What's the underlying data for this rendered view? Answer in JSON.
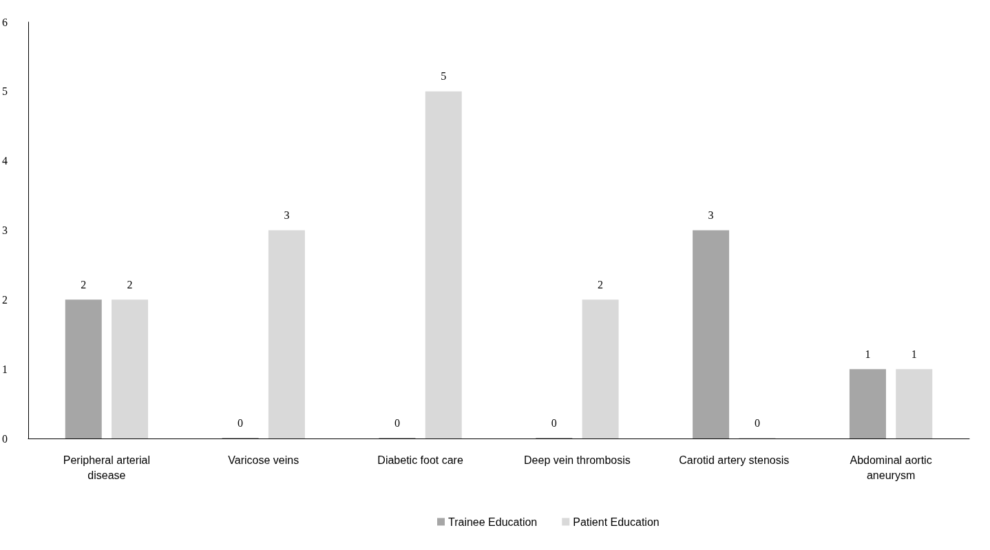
{
  "chart_data": {
    "type": "bar",
    "categories": [
      "Peripheral arterial disease",
      "Varicose veins",
      "Diabetic foot care",
      "Deep vein thrombosis",
      "Carotid artery stenosis",
      "Abdominal aortic aneurysm"
    ],
    "series": [
      {
        "name": "Trainee Education",
        "color": "#a6a6a6",
        "values": [
          2,
          0,
          0,
          0,
          3,
          1
        ]
      },
      {
        "name": "Patient Education",
        "color": "#d9d9d9",
        "values": [
          2,
          3,
          5,
          2,
          0,
          1
        ]
      }
    ],
    "ylim": [
      0,
      6
    ],
    "yticks": [
      0,
      1,
      2,
      3,
      4,
      5,
      6
    ],
    "grid": false,
    "legend": "bottom",
    "data_labels": true
  }
}
